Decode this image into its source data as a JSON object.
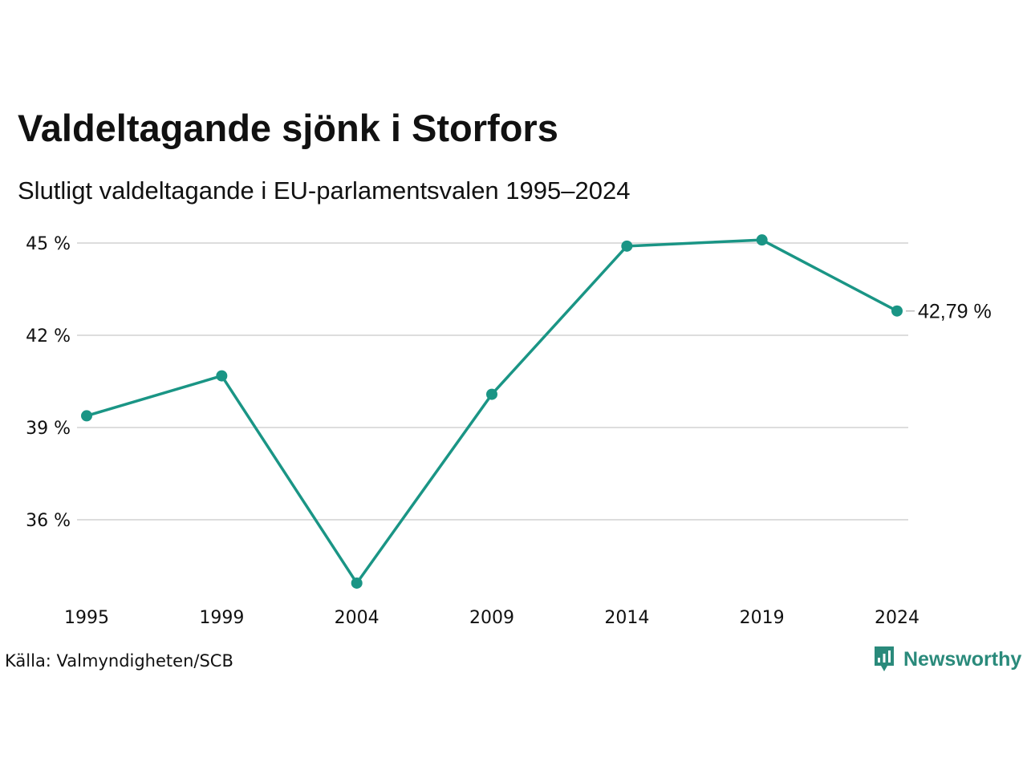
{
  "title": "Valdeltagande sjönk i Storfors",
  "subtitle": "Slutligt valdeltagande i EU-parlamentsvalen 1995–2024",
  "source": "Källa: Valmyndigheten/SCB",
  "brand": {
    "name": "Newsworthy",
    "icon": "newsworthy-logo-icon",
    "color": "#2a8a7b"
  },
  "colors": {
    "line": "#1a9585",
    "grid": "#dddddd"
  },
  "chart_data": {
    "type": "line",
    "title": "Valdeltagande sjönk i Storfors",
    "subtitle": "Slutligt valdeltagande i EU-parlamentsvalen 1995–2024",
    "xlabel": "",
    "ylabel": "",
    "x": [
      "1995",
      "1999",
      "2004",
      "2009",
      "2014",
      "2019",
      "2024"
    ],
    "series": [
      {
        "values": [
          39.38,
          40.68,
          33.94,
          40.08,
          44.9,
          45.1,
          42.79
        ]
      }
    ],
    "yticks": [
      36,
      39,
      42,
      45
    ],
    "ytick_labels": [
      "36 %",
      "39 %",
      "42 %",
      "45 %"
    ],
    "ylim": [
      33.5,
      45.5
    ],
    "grid": true,
    "end_label": "42,79 %"
  }
}
